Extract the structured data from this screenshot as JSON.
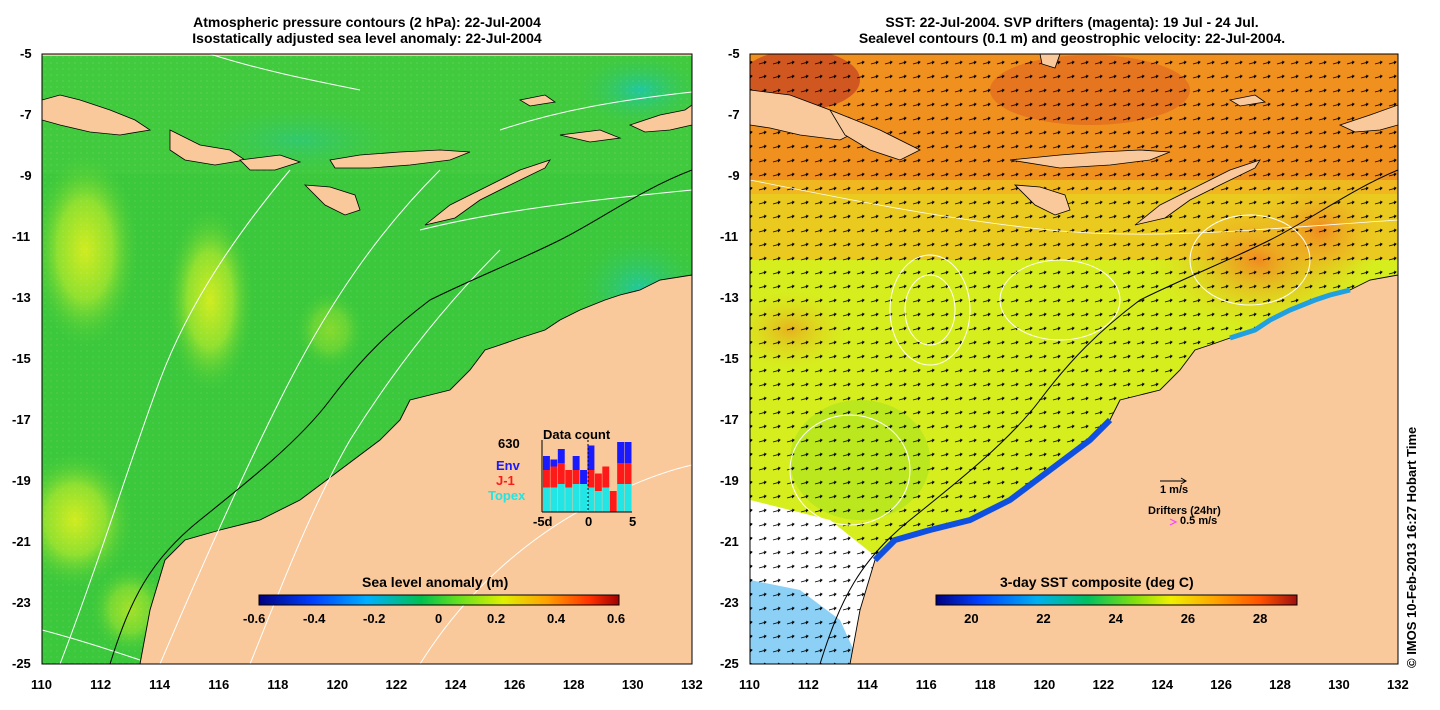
{
  "left_panel": {
    "title_line1": "Atmospheric pressure contours (2 hPa): 22-Jul-2004",
    "title_line2": "Isostatically adjusted sea level anomaly: 22-Jul-2004",
    "x_ticks": [
      "110",
      "112",
      "114",
      "116",
      "118",
      "120",
      "122",
      "124",
      "126",
      "128",
      "130",
      "132"
    ],
    "y_ticks": [
      "-5",
      "-7",
      "-9",
      "-11",
      "-13",
      "-15",
      "-17",
      "-19",
      "-21",
      "-23",
      "-25"
    ],
    "colorbar": {
      "title": "Sea level anomaly (m)",
      "ticks": [
        "-0.6",
        "-0.4",
        "-0.2",
        "0",
        "0.2",
        "0.4",
        "0.6"
      ]
    },
    "data_count": {
      "title": "Data count",
      "total": "630",
      "legend": [
        {
          "label": "Env",
          "color": "#1a1aff"
        },
        {
          "label": "J-1",
          "color": "#ff1a1a"
        },
        {
          "label": "Topex",
          "color": "#22e5e5"
        }
      ],
      "x_ticks": [
        "-5d",
        "0",
        "5"
      ],
      "bars": [
        {
          "topex": 0.35,
          "j1": 0.25,
          "env": 0.2
        },
        {
          "topex": 0.35,
          "j1": 0.3,
          "env": 0.1
        },
        {
          "topex": 0.4,
          "j1": 0.3,
          "env": 0.2
        },
        {
          "topex": 0.35,
          "j1": 0.25,
          "env": 0.0
        },
        {
          "topex": 0.4,
          "j1": 0.2,
          "env": 0.2
        },
        {
          "topex": 0.4,
          "j1": 0.0,
          "env": 0.2
        },
        {
          "topex": 0.35,
          "j1": 0.25,
          "env": 0.35
        },
        {
          "topex": 0.3,
          "j1": 0.25,
          "env": 0.0
        },
        {
          "topex": 0.35,
          "j1": 0.3,
          "env": 0.0
        },
        {
          "topex": 0.0,
          "j1": 0.3,
          "env": 0.0
        },
        {
          "topex": 0.4,
          "j1": 0.3,
          "env": 0.3
        },
        {
          "topex": 0.4,
          "j1": 0.3,
          "env": 0.3
        }
      ]
    }
  },
  "right_panel": {
    "title_line1": "SST: 22-Jul-2004. SVP drifters (magenta): 19 Jul - 24 Jul.",
    "title_line2": "Sealevel contours (0.1 m) and geostrophic velocity: 22-Jul-2004.",
    "x_ticks": [
      "110",
      "112",
      "114",
      "116",
      "118",
      "120",
      "122",
      "124",
      "126",
      "128",
      "130",
      "132"
    ],
    "y_ticks": [
      "-5",
      "-7",
      "-9",
      "-11",
      "-13",
      "-15",
      "-17",
      "-19",
      "-21",
      "-23",
      "-25"
    ],
    "colorbar": {
      "title": "3-day SST composite (deg C)",
      "ticks": [
        "20",
        "22",
        "24",
        "26",
        "28"
      ]
    },
    "velocity_scale_label": "1 m/s",
    "drifters_label": "Drifters (24hr)",
    "drifter_scale_label": "0.5 m/s"
  },
  "credit": "© IMOS 10-Feb-2013 16:27 Hobart Time",
  "colors": {
    "land": "#f9c89b",
    "ocean_green": "#3cc83c",
    "sst_yellow": "#d6ee1e",
    "sst_orange": "#f0901e",
    "drifter_magenta": "#ff40ff"
  }
}
